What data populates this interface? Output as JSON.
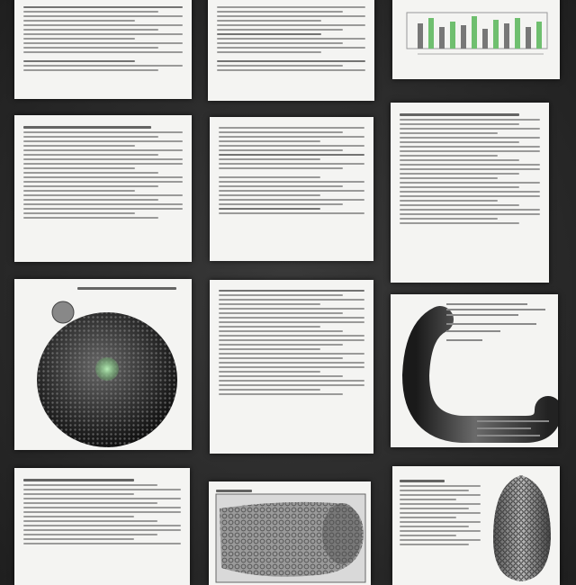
{
  "app": {
    "title": ""
  },
  "pages": [
    {
      "id": "r1c1",
      "title": ""
    },
    {
      "id": "r1c2",
      "title": ""
    },
    {
      "id": "r1c3",
      "title": ""
    },
    {
      "id": "r2c1",
      "title": ""
    },
    {
      "id": "r2c2",
      "title": ""
    },
    {
      "id": "r2c3",
      "title": ""
    },
    {
      "id": "r3c1",
      "title": ""
    },
    {
      "id": "r3c2",
      "title": ""
    },
    {
      "id": "r3c3",
      "title": ""
    },
    {
      "id": "r4c1",
      "title": ""
    },
    {
      "id": "r4c2",
      "title": ""
    },
    {
      "id": "r4c3",
      "title": ""
    }
  ],
  "colors": {
    "background": "#2a2a2a",
    "paper": "#f4f4f2",
    "text_gray": "#8a8a8a",
    "chart_green": "#6fbf6f",
    "nucleus_green": "#8fd68f"
  },
  "icons": {
    "sphere": "dotted-sphere-figure",
    "tube": "curved-tube-figure",
    "tissue": "tissue-section-figure",
    "cone": "textured-cone-figure",
    "bars": "bar-chart-figure"
  }
}
